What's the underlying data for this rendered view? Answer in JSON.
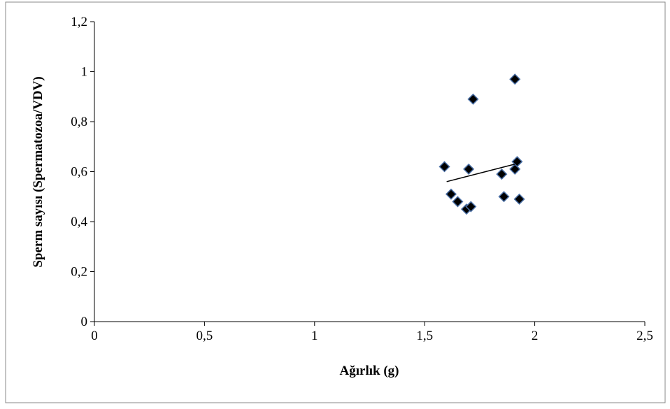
{
  "chart_data": {
    "type": "scatter",
    "x_label": "Ağırlık (g)",
    "y_label": "Sperm sayısı (Spermatozoa/VDV)",
    "series": [
      {
        "color": "#000000",
        "edge_color": "#4a6fa5",
        "x": [
          1.59,
          1.7,
          1.62,
          1.65,
          1.72,
          1.69,
          1.71,
          1.85,
          1.86,
          1.91,
          1.92,
          1.91,
          1.93
        ],
        "values": [
          0.62,
          0.61,
          0.51,
          0.48,
          0.89,
          0.45,
          0.46,
          0.59,
          0.5,
          0.61,
          0.64,
          0.97,
          0.49
        ]
      }
    ],
    "trendline": {
      "color": "#000000",
      "x": [
        1.6,
        1.91
      ],
      "values": [
        0.56,
        0.63
      ]
    },
    "xlim": [
      0,
      2.5
    ],
    "xticks": [
      0,
      {
        "value": 0.5,
        "label": "0,5"
      },
      1,
      {
        "value": 1.5,
        "label": "1,5"
      },
      2,
      {
        "value": 2.5,
        "label": "2,5"
      }
    ],
    "ylim": [
      0,
      1.2
    ],
    "yticks": [
      0,
      {
        "value": 0.2,
        "label": "0,2"
      },
      {
        "value": 0.4,
        "label": "0,4"
      },
      {
        "value": 0.6,
        "label": "0,6"
      },
      {
        "value": 0.8,
        "label": "0,8"
      },
      1,
      {
        "value": 1.2,
        "label": "1,2"
      }
    ],
    "grid": false
  }
}
